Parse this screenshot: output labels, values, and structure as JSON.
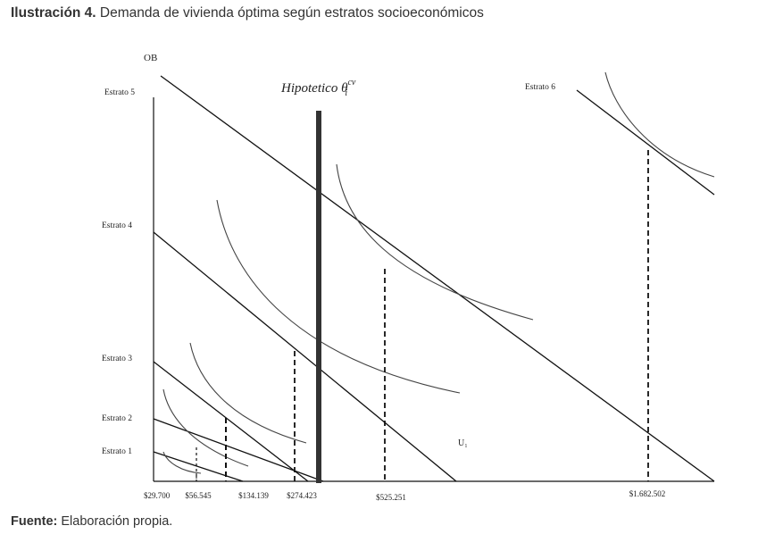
{
  "caption": {
    "label": "Ilustración 4.",
    "text": " Demanda de vivienda óptima según estratos socioeconómicos"
  },
  "source": {
    "label": "Fuente:",
    "text": " Elaboración propia."
  },
  "chart_data": {
    "type": "line",
    "title": "",
    "ylabel": "OB",
    "xlabel": "",
    "grid": false,
    "strata": [
      {
        "name": "Estrato 1",
        "price": "$29.700"
      },
      {
        "name": "Estrato 2",
        "price": "$56.545"
      },
      {
        "name": "Estrato 3",
        "price": "$134.139"
      },
      {
        "name": "Estrato 4",
        "price": "$274.423"
      },
      {
        "name": "Estrato 5",
        "price": "$525.251"
      },
      {
        "name": "Estrato 6",
        "price": "$1.682.502"
      }
    ],
    "threshold": {
      "label": "Hipotetico θ",
      "superscript": "cv",
      "subscript": "i"
    },
    "curve_label": "U₁",
    "colors": {
      "budget": "#111111",
      "indifference": "#444444",
      "threshold": "#333333"
    }
  }
}
